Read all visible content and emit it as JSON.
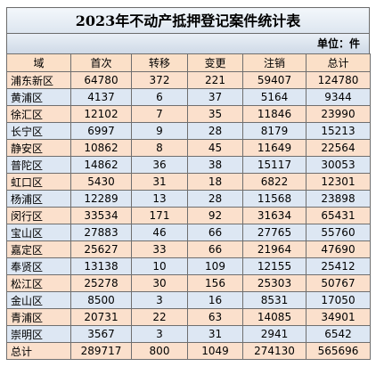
{
  "title": "2023年不动产抵押登记案件统计表",
  "unit_label": "单位：件",
  "headers": [
    "域",
    "首次",
    "转移",
    "变更",
    "注销",
    "总计"
  ],
  "rows": [
    [
      "浦东新区",
      "64780",
      "372",
      "221",
      "59407",
      "124780"
    ],
    [
      "黄浦区",
      "4137",
      "6",
      "37",
      "5164",
      "9344"
    ],
    [
      "徐汇区",
      "12102",
      "7",
      "35",
      "11846",
      "23990"
    ],
    [
      "长宁区",
      "6997",
      "9",
      "28",
      "8179",
      "15213"
    ],
    [
      "静安区",
      "10862",
      "8",
      "45",
      "11649",
      "22564"
    ],
    [
      "普陀区",
      "14862",
      "36",
      "38",
      "15117",
      "30053"
    ],
    [
      "虹口区",
      "5430",
      "31",
      "18",
      "6822",
      "12301"
    ],
    [
      "杨浦区",
      "12289",
      "13",
      "28",
      "11568",
      "23898"
    ],
    [
      "闵行区",
      "33534",
      "171",
      "92",
      "31634",
      "65431"
    ],
    [
      "宝山区",
      "27883",
      "46",
      "66",
      "27765",
      "55760"
    ],
    [
      "嘉定区",
      "25627",
      "33",
      "66",
      "21964",
      "47690"
    ],
    [
      "奉贤区",
      "13138",
      "10",
      "109",
      "12155",
      "25412"
    ],
    [
      "松江区",
      "25278",
      "30",
      "156",
      "25303",
      "50767"
    ],
    [
      "金山区",
      "8500",
      "3",
      "16",
      "8531",
      "17050"
    ],
    [
      "青浦区",
      "20731",
      "22",
      "63",
      "14085",
      "34901"
    ],
    [
      "崇明区",
      "3567",
      "3",
      "31",
      "2941",
      "6542"
    ]
  ],
  "total": [
    "总计",
    "289717",
    "800",
    "1049",
    "274130",
    "565696"
  ],
  "colors": {
    "orange_row": "#fbe0cc",
    "blue_row": "#dde7f3"
  }
}
